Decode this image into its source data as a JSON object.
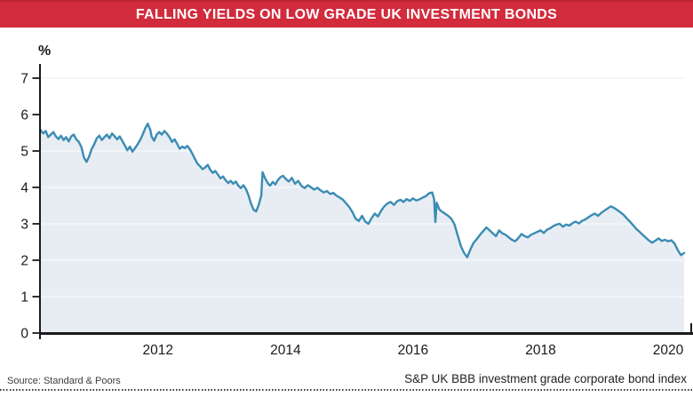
{
  "banner": {
    "title": "FALLING YIELDS ON LOW GRADE UK INVESTMENT BONDS",
    "bg_color": "#d22b3c",
    "border_color": "#bd2434",
    "text_color": "#ffffff"
  },
  "footer": {
    "source": "Source: Standard & Poors",
    "note": "S&P UK BBB investment grade corporate bond index"
  },
  "chart_data": {
    "type": "area",
    "title": "FALLING YIELDS ON LOW GRADE UK INVESTMENT BONDS",
    "ylabel": "%",
    "xlabel": "",
    "ylim": [
      0,
      7
    ],
    "yticks": [
      0,
      1,
      2,
      3,
      4,
      5,
      6,
      7
    ],
    "xlim": [
      2010.15,
      2020.25
    ],
    "xticks": [
      2012,
      2014,
      2016,
      2018,
      2020
    ],
    "grid": "horizontal",
    "legend": "none",
    "colors": {
      "line": "#3a8cb3",
      "fill": "#e8edf4",
      "axis": "#1a1a1a",
      "grid_over_white": "#ececec",
      "grid_over_fill": "#ffffff",
      "tick_text": "#1a1a1a"
    },
    "series": [
      {
        "name": "S&P UK BBB investment grade corporate bond index yield (%)",
        "points": [
          [
            2010.15,
            5.6
          ],
          [
            2010.2,
            5.48
          ],
          [
            2010.24,
            5.55
          ],
          [
            2010.28,
            5.38
          ],
          [
            2010.32,
            5.45
          ],
          [
            2010.36,
            5.52
          ],
          [
            2010.4,
            5.4
          ],
          [
            2010.44,
            5.33
          ],
          [
            2010.48,
            5.42
          ],
          [
            2010.52,
            5.3
          ],
          [
            2010.56,
            5.38
          ],
          [
            2010.6,
            5.26
          ],
          [
            2010.64,
            5.4
          ],
          [
            2010.68,
            5.45
          ],
          [
            2010.72,
            5.32
          ],
          [
            2010.76,
            5.25
          ],
          [
            2010.8,
            5.1
          ],
          [
            2010.84,
            4.82
          ],
          [
            2010.88,
            4.7
          ],
          [
            2010.92,
            4.85
          ],
          [
            2010.96,
            5.05
          ],
          [
            2011.0,
            5.18
          ],
          [
            2011.04,
            5.35
          ],
          [
            2011.08,
            5.42
          ],
          [
            2011.12,
            5.3
          ],
          [
            2011.16,
            5.38
          ],
          [
            2011.2,
            5.45
          ],
          [
            2011.24,
            5.35
          ],
          [
            2011.28,
            5.48
          ],
          [
            2011.32,
            5.4
          ],
          [
            2011.36,
            5.32
          ],
          [
            2011.4,
            5.4
          ],
          [
            2011.44,
            5.28
          ],
          [
            2011.48,
            5.15
          ],
          [
            2011.52,
            5.02
          ],
          [
            2011.56,
            5.12
          ],
          [
            2011.6,
            4.98
          ],
          [
            2011.64,
            5.08
          ],
          [
            2011.68,
            5.18
          ],
          [
            2011.72,
            5.3
          ],
          [
            2011.76,
            5.45
          ],
          [
            2011.8,
            5.62
          ],
          [
            2011.84,
            5.75
          ],
          [
            2011.88,
            5.58
          ],
          [
            2011.9,
            5.4
          ],
          [
            2011.94,
            5.28
          ],
          [
            2011.98,
            5.45
          ],
          [
            2012.02,
            5.52
          ],
          [
            2012.06,
            5.45
          ],
          [
            2012.1,
            5.55
          ],
          [
            2012.14,
            5.48
          ],
          [
            2012.18,
            5.38
          ],
          [
            2012.22,
            5.25
          ],
          [
            2012.26,
            5.32
          ],
          [
            2012.3,
            5.2
          ],
          [
            2012.34,
            5.06
          ],
          [
            2012.38,
            5.12
          ],
          [
            2012.42,
            5.08
          ],
          [
            2012.46,
            5.14
          ],
          [
            2012.5,
            5.05
          ],
          [
            2012.54,
            4.92
          ],
          [
            2012.58,
            4.78
          ],
          [
            2012.62,
            4.65
          ],
          [
            2012.66,
            4.58
          ],
          [
            2012.7,
            4.5
          ],
          [
            2012.74,
            4.55
          ],
          [
            2012.78,
            4.62
          ],
          [
            2012.82,
            4.48
          ],
          [
            2012.86,
            4.4
          ],
          [
            2012.9,
            4.45
          ],
          [
            2012.94,
            4.35
          ],
          [
            2012.98,
            4.25
          ],
          [
            2013.02,
            4.3
          ],
          [
            2013.06,
            4.2
          ],
          [
            2013.1,
            4.12
          ],
          [
            2013.14,
            4.18
          ],
          [
            2013.18,
            4.1
          ],
          [
            2013.22,
            4.16
          ],
          [
            2013.26,
            4.05
          ],
          [
            2013.3,
            3.98
          ],
          [
            2013.34,
            4.06
          ],
          [
            2013.38,
            3.95
          ],
          [
            2013.42,
            3.78
          ],
          [
            2013.46,
            3.55
          ],
          [
            2013.5,
            3.38
          ],
          [
            2013.54,
            3.34
          ],
          [
            2013.58,
            3.52
          ],
          [
            2013.62,
            3.78
          ],
          [
            2013.64,
            4.42
          ],
          [
            2013.68,
            4.25
          ],
          [
            2013.72,
            4.12
          ],
          [
            2013.76,
            4.05
          ],
          [
            2013.8,
            4.15
          ],
          [
            2013.84,
            4.08
          ],
          [
            2013.88,
            4.2
          ],
          [
            2013.92,
            4.28
          ],
          [
            2013.96,
            4.32
          ],
          [
            2014.0,
            4.24
          ],
          [
            2014.05,
            4.16
          ],
          [
            2014.1,
            4.26
          ],
          [
            2014.15,
            4.1
          ],
          [
            2014.2,
            4.18
          ],
          [
            2014.25,
            4.04
          ],
          [
            2014.3,
            3.98
          ],
          [
            2014.35,
            4.06
          ],
          [
            2014.4,
            4.0
          ],
          [
            2014.45,
            3.94
          ],
          [
            2014.5,
            3.99
          ],
          [
            2014.55,
            3.92
          ],
          [
            2014.6,
            3.86
          ],
          [
            2014.65,
            3.9
          ],
          [
            2014.7,
            3.82
          ],
          [
            2014.75,
            3.85
          ],
          [
            2014.8,
            3.77
          ],
          [
            2014.85,
            3.72
          ],
          [
            2014.9,
            3.66
          ],
          [
            2014.95,
            3.56
          ],
          [
            2015.0,
            3.46
          ],
          [
            2015.05,
            3.32
          ],
          [
            2015.1,
            3.14
          ],
          [
            2015.15,
            3.08
          ],
          [
            2015.2,
            3.22
          ],
          [
            2015.25,
            3.06
          ],
          [
            2015.3,
            3.0
          ],
          [
            2015.35,
            3.16
          ],
          [
            2015.4,
            3.28
          ],
          [
            2015.45,
            3.2
          ],
          [
            2015.5,
            3.36
          ],
          [
            2015.55,
            3.48
          ],
          [
            2015.6,
            3.56
          ],
          [
            2015.65,
            3.6
          ],
          [
            2015.7,
            3.52
          ],
          [
            2015.75,
            3.62
          ],
          [
            2015.8,
            3.66
          ],
          [
            2015.85,
            3.6
          ],
          [
            2015.9,
            3.68
          ],
          [
            2015.95,
            3.63
          ],
          [
            2016.0,
            3.7
          ],
          [
            2016.05,
            3.64
          ],
          [
            2016.1,
            3.67
          ],
          [
            2016.15,
            3.72
          ],
          [
            2016.2,
            3.76
          ],
          [
            2016.25,
            3.84
          ],
          [
            2016.3,
            3.86
          ],
          [
            2016.33,
            3.68
          ],
          [
            2016.35,
            3.05
          ],
          [
            2016.37,
            3.58
          ],
          [
            2016.41,
            3.4
          ],
          [
            2016.45,
            3.34
          ],
          [
            2016.5,
            3.28
          ],
          [
            2016.55,
            3.22
          ],
          [
            2016.6,
            3.14
          ],
          [
            2016.65,
            2.98
          ],
          [
            2016.7,
            2.68
          ],
          [
            2016.75,
            2.38
          ],
          [
            2016.8,
            2.2
          ],
          [
            2016.85,
            2.08
          ],
          [
            2016.9,
            2.3
          ],
          [
            2016.95,
            2.48
          ],
          [
            2017.0,
            2.58
          ],
          [
            2017.05,
            2.7
          ],
          [
            2017.1,
            2.8
          ],
          [
            2017.15,
            2.9
          ],
          [
            2017.2,
            2.82
          ],
          [
            2017.25,
            2.74
          ],
          [
            2017.3,
            2.66
          ],
          [
            2017.35,
            2.82
          ],
          [
            2017.4,
            2.74
          ],
          [
            2017.45,
            2.7
          ],
          [
            2017.5,
            2.63
          ],
          [
            2017.55,
            2.56
          ],
          [
            2017.6,
            2.52
          ],
          [
            2017.65,
            2.61
          ],
          [
            2017.7,
            2.72
          ],
          [
            2017.75,
            2.66
          ],
          [
            2017.8,
            2.63
          ],
          [
            2017.85,
            2.7
          ],
          [
            2017.9,
            2.74
          ],
          [
            2017.95,
            2.78
          ],
          [
            2018.0,
            2.82
          ],
          [
            2018.05,
            2.75
          ],
          [
            2018.1,
            2.84
          ],
          [
            2018.15,
            2.88
          ],
          [
            2018.2,
            2.94
          ],
          [
            2018.25,
            2.98
          ],
          [
            2018.3,
            3.0
          ],
          [
            2018.35,
            2.92
          ],
          [
            2018.4,
            2.98
          ],
          [
            2018.45,
            2.95
          ],
          [
            2018.5,
            3.02
          ],
          [
            2018.55,
            3.06
          ],
          [
            2018.6,
            3.01
          ],
          [
            2018.65,
            3.08
          ],
          [
            2018.7,
            3.12
          ],
          [
            2018.75,
            3.18
          ],
          [
            2018.8,
            3.24
          ],
          [
            2018.85,
            3.28
          ],
          [
            2018.9,
            3.22
          ],
          [
            2018.95,
            3.3
          ],
          [
            2019.0,
            3.36
          ],
          [
            2019.05,
            3.42
          ],
          [
            2019.1,
            3.48
          ],
          [
            2019.15,
            3.44
          ],
          [
            2019.2,
            3.38
          ],
          [
            2019.25,
            3.32
          ],
          [
            2019.3,
            3.25
          ],
          [
            2019.35,
            3.15
          ],
          [
            2019.4,
            3.06
          ],
          [
            2019.45,
            2.96
          ],
          [
            2019.5,
            2.86
          ],
          [
            2019.55,
            2.78
          ],
          [
            2019.6,
            2.7
          ],
          [
            2019.65,
            2.62
          ],
          [
            2019.7,
            2.54
          ],
          [
            2019.75,
            2.48
          ],
          [
            2019.8,
            2.54
          ],
          [
            2019.85,
            2.6
          ],
          [
            2019.9,
            2.53
          ],
          [
            2019.95,
            2.56
          ],
          [
            2020.0,
            2.52
          ],
          [
            2020.05,
            2.55
          ],
          [
            2020.1,
            2.46
          ],
          [
            2020.15,
            2.28
          ],
          [
            2020.2,
            2.14
          ],
          [
            2020.25,
            2.2
          ]
        ]
      }
    ]
  }
}
